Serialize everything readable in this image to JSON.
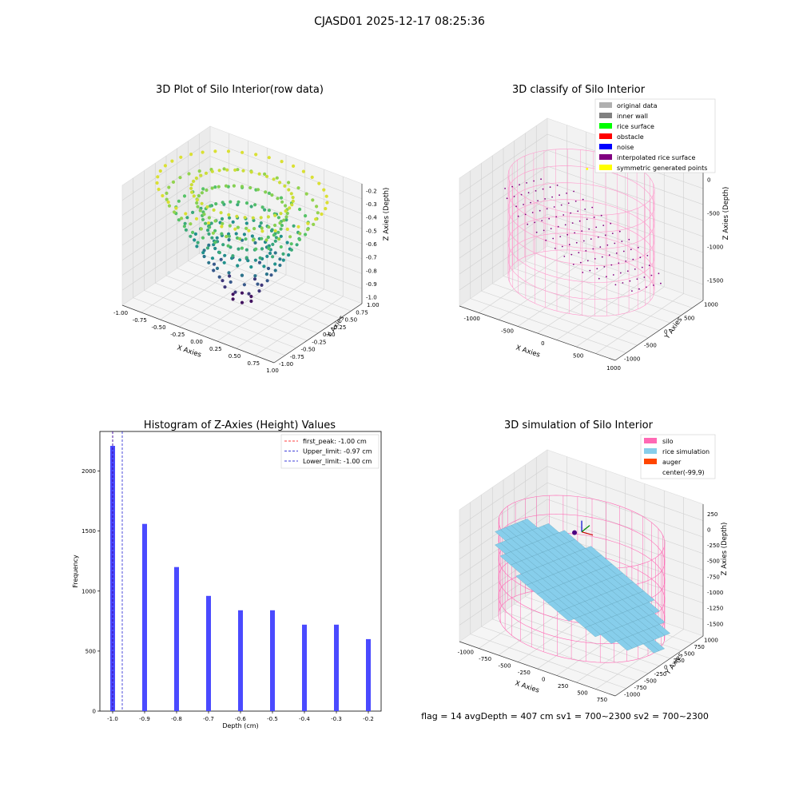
{
  "figure": {
    "suptitle": "CJASD01 2025-12-17 08:25:36"
  },
  "chart_data": [
    {
      "type": "scatter",
      "title": "3D Plot of Silo Interior(row data)",
      "xlabel": "X Axies",
      "ylabel": "Y Axies",
      "zlabel": "Z Axies (Depth)",
      "xticks": [
        "-1.00",
        "-0.75",
        "-0.50",
        "-0.25",
        "0.00",
        "0.25",
        "0.50",
        "0.75",
        "1.00"
      ],
      "yticks": [
        "-1.00",
        "-0.75",
        "-0.50",
        "-0.25",
        "0.00",
        "0.25",
        "0.50",
        "0.75",
        "1.00"
      ],
      "zticks": [
        "-1.0",
        "-0.9",
        "-0.8",
        "-0.7",
        "-0.6",
        "-0.5",
        "-0.4",
        "-0.3",
        "-0.2"
      ],
      "xlim": [
        -1,
        1
      ],
      "ylim": [
        -1,
        1
      ],
      "zlim": [
        -1.05,
        -0.15
      ],
      "layers_z": [
        -1.0,
        -0.9,
        -0.8,
        -0.7,
        -0.6,
        -0.5,
        -0.4,
        -0.3,
        -0.2
      ],
      "colormap": "viridis",
      "points_note": "bowl-shaped point cloud, radius grows with depth level"
    },
    {
      "type": "scatter",
      "title": "3D classify of Silo Interior",
      "xlabel": "X Axies",
      "ylabel": "Y Axies",
      "zlabel": "Z Axies (Depth)",
      "xticks": [
        "-1000",
        "-500",
        "0",
        "500",
        "1000"
      ],
      "yticks": [
        "-1000",
        "-500",
        "0",
        "500",
        "1000"
      ],
      "zticks": [
        "0",
        "-500",
        "-1000",
        "-1500"
      ],
      "xlim": [
        -1200,
        1000
      ],
      "ylim": [
        -1100,
        1100
      ],
      "zlim": [
        -1800,
        100
      ],
      "legend": [
        {
          "label": "original data",
          "color": "#b0b0b0"
        },
        {
          "label": "inner wall",
          "color": "#808080"
        },
        {
          "label": "rice surface",
          "color": "#00ff00"
        },
        {
          "label": "obstacle",
          "color": "#ff0000"
        },
        {
          "label": "noise",
          "color": "#0000ff"
        },
        {
          "label": "interpolated rice surface",
          "color": "#800080"
        },
        {
          "label": "symmetric generated points",
          "color": "#ffff00"
        }
      ],
      "legend_loc": "upper right",
      "wall_color": "#ff99cc"
    },
    {
      "type": "bar",
      "title": "Histogram of Z-Axies (Height) Values",
      "xlabel": "Depth (cm)",
      "ylabel": "Frequency",
      "categories": [
        -1.0,
        -0.9,
        -0.8,
        -0.7,
        -0.6,
        -0.5,
        -0.4,
        -0.3,
        -0.2
      ],
      "values": [
        2210,
        1560,
        1200,
        960,
        840,
        840,
        720,
        720,
        600
      ],
      "bar_color": "#4a4aff",
      "xlim": [
        -1.04,
        -0.16
      ],
      "ylim": [
        0,
        2330
      ],
      "xticks": [
        "-1.0",
        "-0.9",
        "-0.8",
        "-0.7",
        "-0.6",
        "-0.5",
        "-0.4",
        "-0.3",
        "-0.2"
      ],
      "xtick_values": [
        -1.0,
        -0.9,
        -0.8,
        -0.7,
        -0.6,
        -0.5,
        -0.4,
        -0.3,
        -0.2
      ],
      "yticks": [
        "0",
        "500",
        "1000",
        "1500",
        "2000"
      ],
      "ytick_values": [
        0,
        500,
        1000,
        1500,
        2000
      ],
      "vlines": [
        {
          "label": "first_peak: -1.00 cm",
          "x": -1.0,
          "color": "#ff0000"
        },
        {
          "label": "Upper_limit: -0.97 cm",
          "x": -0.97,
          "color": "#0000cc"
        },
        {
          "label": "Lower_limit: -1.00 cm",
          "x": -1.0,
          "color": "#0000cc"
        }
      ],
      "legend_loc": "upper right"
    },
    {
      "type": "surface",
      "title": "3D simulation of Silo Interior",
      "xlabel": "X Axies",
      "ylabel": "Y Axies",
      "zlabel": "Z Axies (Depth)",
      "xticks": [
        "-1000",
        "-750",
        "-500",
        "-250",
        "0",
        "250",
        "500",
        "750"
      ],
      "yticks": [
        "-1000",
        "-750",
        "-500",
        "-250",
        "0",
        "250",
        "500",
        "750",
        "1000"
      ],
      "zticks": [
        "250",
        "0",
        "-250",
        "-500",
        "-750",
        "-1000",
        "-1250",
        "-1500"
      ],
      "xlim": [
        -1100,
        900
      ],
      "ylim": [
        -1100,
        1100
      ],
      "zlim": [
        -1700,
        400
      ],
      "legend": [
        {
          "label": "silo",
          "color": "#ff69b4"
        },
        {
          "label": "rice simulation",
          "color": "#87ceeb"
        },
        {
          "label": "auger",
          "color": "#ff4500"
        },
        {
          "label": "center(-99,9)",
          "color": "#ffffff"
        }
      ],
      "legend_loc": "upper right"
    }
  ],
  "footer": {
    "text": "flag = 14   avgDepth = 407 cm  sv1 = 700~2300  sv2 = 700~2300"
  }
}
